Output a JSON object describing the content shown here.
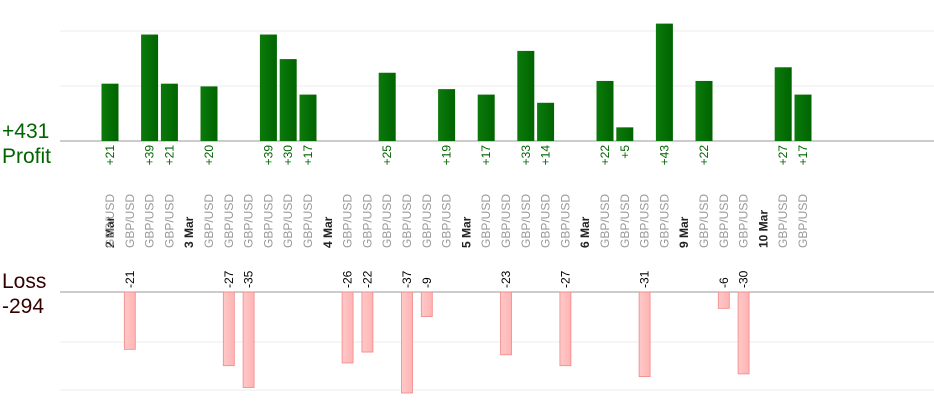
{
  "chart_data": {
    "type": "bar",
    "profit": {
      "label": "Profit",
      "total": "+431",
      "ylim": [
        0,
        50
      ],
      "color": "#006400",
      "text_color": "#006400"
    },
    "loss": {
      "label": "Loss",
      "total": "-294",
      "ylim": [
        0,
        50
      ],
      "color": "#ffb4b4",
      "text_color": "#000000"
    },
    "categories": [
      {
        "date": "2 Mar",
        "pair": "GBP/USD",
        "value": "+21",
        "profit": 21
      },
      {
        "date": "",
        "pair": "GBP/USD",
        "value": "-21",
        "loss": 21
      },
      {
        "date": "",
        "pair": "GBP/USD",
        "value": "+39",
        "profit": 39
      },
      {
        "date": "",
        "pair": "GBP/USD",
        "value": "+21",
        "profit": 21
      },
      {
        "date": "3 Mar",
        "pair": "",
        "value": ""
      },
      {
        "date": "",
        "pair": "GBP/USD",
        "value": "+20",
        "profit": 20
      },
      {
        "date": "",
        "pair": "GBP/USD",
        "value": "-27",
        "loss": 27
      },
      {
        "date": "",
        "pair": "GBP/USD",
        "value": "-35",
        "loss": 35
      },
      {
        "date": "",
        "pair": "GBP/USD",
        "value": "+39",
        "profit": 39
      },
      {
        "date": "",
        "pair": "GBP/USD",
        "value": "+30",
        "profit": 30
      },
      {
        "date": "",
        "pair": "GBP/USD",
        "value": "+17",
        "profit": 17
      },
      {
        "date": "4 Mar",
        "pair": "",
        "value": ""
      },
      {
        "date": "",
        "pair": "GBP/USD",
        "value": "-26",
        "loss": 26
      },
      {
        "date": "",
        "pair": "GBP/USD",
        "value": "-22",
        "loss": 22
      },
      {
        "date": "",
        "pair": "GBP/USD",
        "value": "+25",
        "profit": 25
      },
      {
        "date": "",
        "pair": "GBP/USD",
        "value": "-37",
        "loss": 37
      },
      {
        "date": "",
        "pair": "GBP/USD",
        "value": "-9",
        "loss": 9
      },
      {
        "date": "",
        "pair": "GBP/USD",
        "value": "+19",
        "profit": 19
      },
      {
        "date": "5 Mar",
        "pair": "",
        "value": ""
      },
      {
        "date": "",
        "pair": "GBP/USD",
        "value": "+17",
        "profit": 17
      },
      {
        "date": "",
        "pair": "GBP/USD",
        "value": "-23",
        "loss": 23
      },
      {
        "date": "",
        "pair": "GBP/USD",
        "value": "+33",
        "profit": 33
      },
      {
        "date": "",
        "pair": "GBP/USD",
        "value": "+14",
        "profit": 14
      },
      {
        "date": "",
        "pair": "GBP/USD",
        "value": "-27",
        "loss": 27
      },
      {
        "date": "6 Mar",
        "pair": "",
        "value": ""
      },
      {
        "date": "",
        "pair": "GBP/USD",
        "value": "+22",
        "profit": 22
      },
      {
        "date": "",
        "pair": "GBP/USD",
        "value": "+5",
        "profit": 5
      },
      {
        "date": "",
        "pair": "GBP/USD",
        "value": "-31",
        "loss": 31
      },
      {
        "date": "",
        "pair": "GBP/USD",
        "value": "+43",
        "profit": 43
      },
      {
        "date": "9 Mar",
        "pair": "",
        "value": ""
      },
      {
        "date": "",
        "pair": "GBP/USD",
        "value": "+22",
        "profit": 22
      },
      {
        "date": "",
        "pair": "GBP/USD",
        "value": "-6",
        "loss": 6
      },
      {
        "date": "",
        "pair": "GBP/USD",
        "value": "-30",
        "loss": 30
      },
      {
        "date": "10 Mar",
        "pair": "",
        "value": ""
      },
      {
        "date": "",
        "pair": "GBP/USD",
        "value": "+27",
        "profit": 27
      },
      {
        "date": "",
        "pair": "GBP/USD",
        "value": "+17",
        "profit": 17
      }
    ]
  }
}
